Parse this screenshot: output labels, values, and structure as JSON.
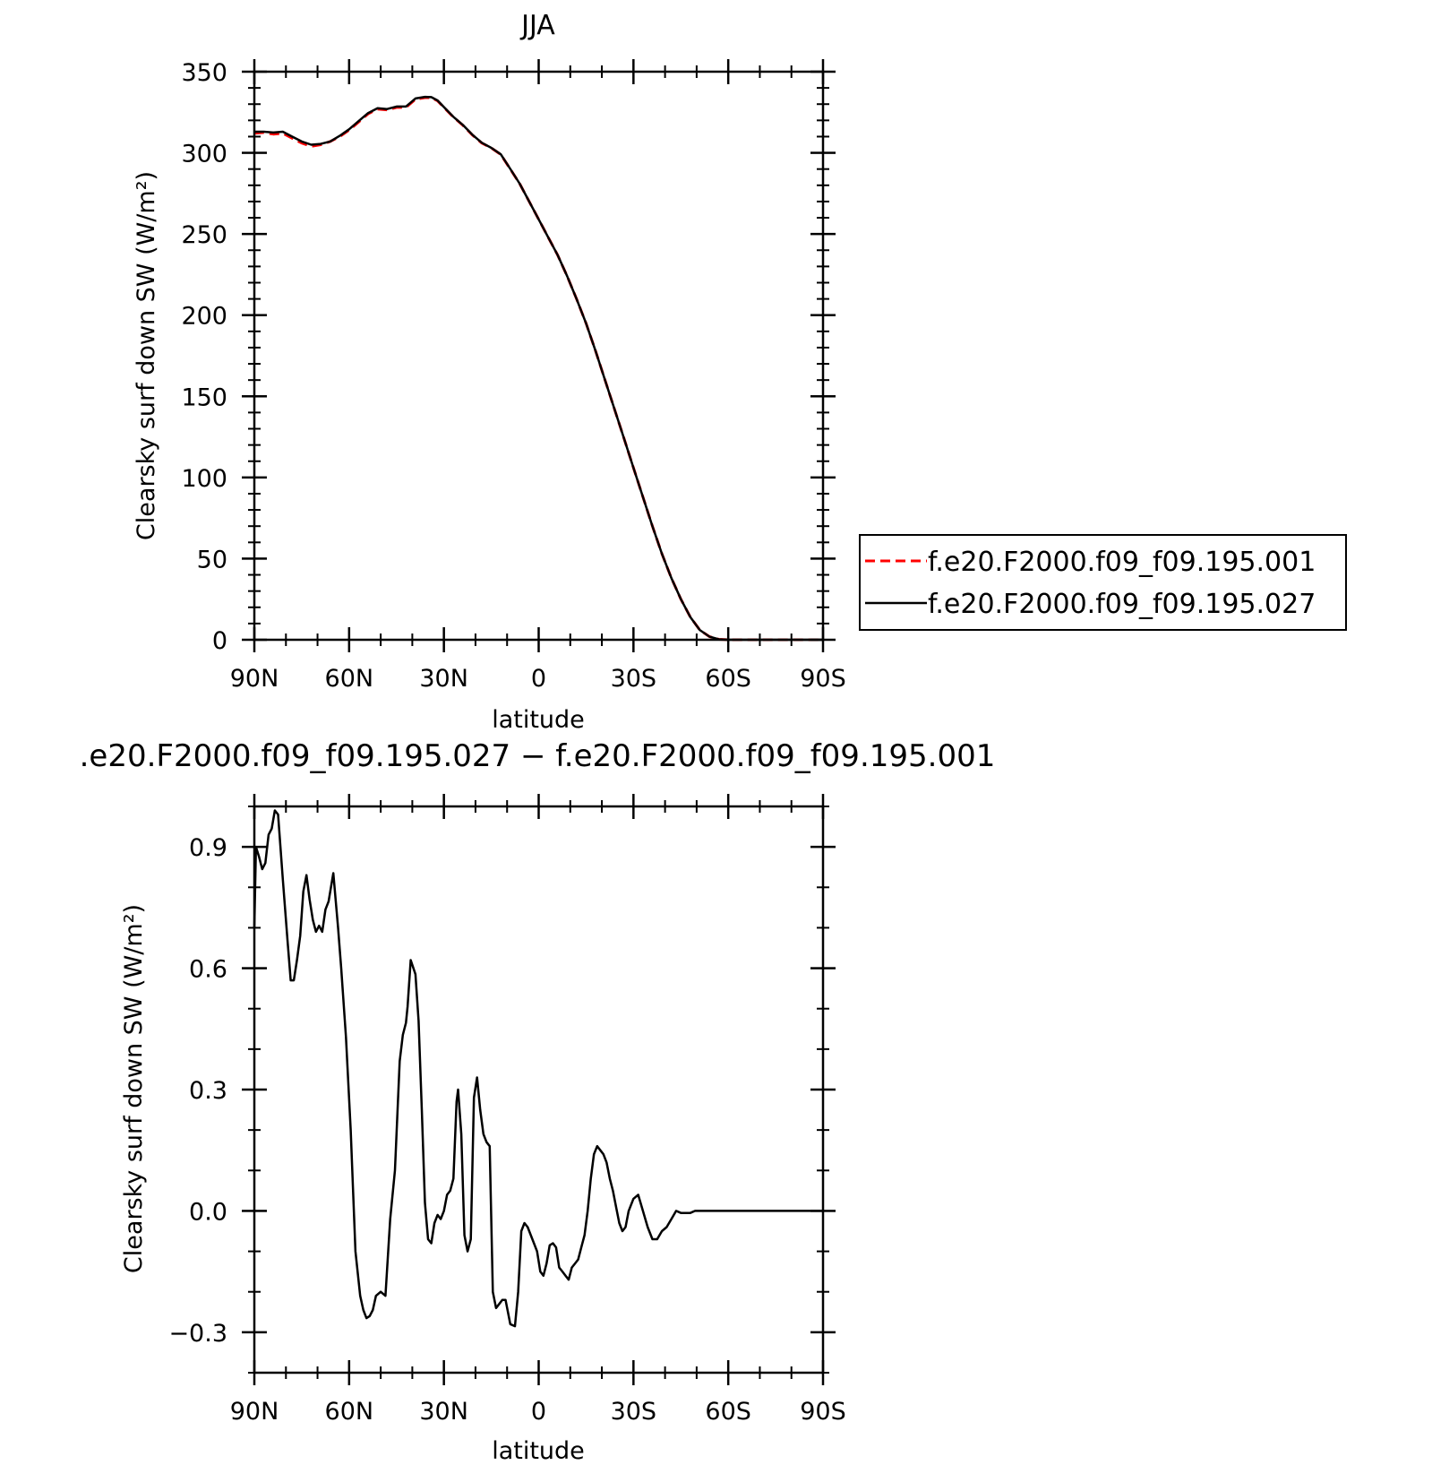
{
  "chart_data": [
    {
      "type": "line",
      "title": "JJA",
      "xlabel": "latitude",
      "ylabel": "Clearsky surf down SW (W/m²)",
      "x_range": [
        90,
        -90
      ],
      "x_ticks": [
        90,
        60,
        30,
        0,
        -30,
        -60,
        -90
      ],
      "x_tick_labels": [
        "90N",
        "60N",
        "30N",
        "0",
        "30S",
        "60S",
        "90S"
      ],
      "ylim": [
        0,
        350
      ],
      "y_ticks": [
        0,
        50,
        100,
        150,
        200,
        250,
        300,
        350
      ],
      "y_tick_labels": [
        "0",
        "50",
        "100",
        "150",
        "200",
        "250",
        "300",
        "350"
      ],
      "grid": false,
      "legend_placement": "outside-right",
      "series": [
        {
          "name": "f.e20.F2000.f09_f09.195.001",
          "color": "#ff0000",
          "style": "dashed",
          "x": [
            90,
            87,
            84,
            81,
            78,
            75,
            72,
            69,
            66,
            63,
            60,
            57,
            54,
            51,
            48,
            45,
            42,
            39,
            36,
            34,
            32,
            30,
            27,
            24,
            21,
            18,
            15,
            12,
            9,
            6,
            3,
            0,
            -3,
            -6,
            -9,
            -12,
            -15,
            -18,
            -21,
            -24,
            -27,
            -30,
            -33,
            -36,
            -39,
            -42,
            -45,
            -48,
            -51,
            -54,
            -57,
            -60,
            -63,
            -66,
            -69,
            -72,
            -75,
            -78,
            -81,
            -84,
            -87,
            -90
          ],
          "y": [
            312,
            312.5,
            311.5,
            312,
            309,
            306,
            304,
            305,
            307,
            310,
            314,
            319,
            324,
            327,
            326.5,
            328,
            328,
            333,
            334,
            334,
            332,
            328,
            322,
            317,
            311,
            306,
            303,
            299,
            290,
            281,
            270,
            259,
            248,
            237,
            224,
            210,
            195,
            178,
            160,
            142,
            124,
            106,
            88,
            70,
            53,
            38,
            25,
            14,
            6,
            2,
            0.3,
            0,
            0,
            0,
            0,
            0,
            0,
            0,
            0,
            0,
            0,
            0
          ]
        },
        {
          "name": "f.e20.F2000.f09_f09.195.027",
          "color": "#000000",
          "style": "solid",
          "x": [
            90,
            87,
            84,
            81,
            78,
            75,
            72,
            69,
            66,
            63,
            60,
            57,
            54,
            51,
            48,
            45,
            42,
            39,
            36,
            34,
            32,
            30,
            27,
            24,
            21,
            18,
            15,
            12,
            9,
            6,
            3,
            0,
            -3,
            -6,
            -9,
            -12,
            -15,
            -18,
            -21,
            -24,
            -27,
            -30,
            -33,
            -36,
            -39,
            -42,
            -45,
            -48,
            -51,
            -54,
            -57,
            -60,
            -63,
            -66,
            -69,
            -72,
            -75,
            -78,
            -81,
            -84,
            -87,
            -90
          ],
          "y": [
            313,
            313,
            312.5,
            313,
            310,
            307,
            305,
            305.5,
            307,
            310.5,
            314.5,
            319.5,
            324.5,
            327.5,
            327,
            328.5,
            328.5,
            333.5,
            334.5,
            334.3,
            332.3,
            328.2,
            322.2,
            317.2,
            311.2,
            306.2,
            303.1,
            299.1,
            290.1,
            281,
            270,
            259,
            248,
            237,
            224,
            210,
            195,
            178,
            160,
            142,
            124,
            106,
            88,
            70,
            53,
            38,
            25,
            14,
            6,
            2,
            0.3,
            0,
            0,
            0,
            0,
            0,
            0,
            0,
            0,
            0,
            0,
            0
          ]
        }
      ]
    },
    {
      "type": "line",
      "title": ".e20.F2000.f09_f09.195.027 − f.e20.F2000.f09_f09.195.001",
      "xlabel": "latitude",
      "ylabel": "Clearsky surf down SW (W/m²)",
      "x_range": [
        90,
        -90
      ],
      "x_ticks": [
        90,
        60,
        30,
        0,
        -30,
        -60,
        -90
      ],
      "x_tick_labels": [
        "90N",
        "60N",
        "30N",
        "0",
        "30S",
        "60S",
        "90S"
      ],
      "ylim": [
        -0.4,
        1.0
      ],
      "y_ticks": [
        -0.3,
        0.0,
        0.3,
        0.6,
        0.9
      ],
      "y_tick_labels": [
        "−0.3",
        "0.0",
        "0.3",
        "0.6",
        "0.9"
      ],
      "grid": false,
      "series": [
        {
          "color": "#000000",
          "style": "solid",
          "x": [
            90,
            89.5,
            88.5,
            87.5,
            86.5,
            85.5,
            84.5,
            83.5,
            82.5,
            81,
            79.5,
            78.5,
            77.5,
            76.5,
            75.5,
            74.5,
            73.5,
            72.5,
            71.5,
            70.5,
            69.5,
            68.5,
            67.5,
            66.5,
            65,
            63.5,
            62.5,
            61,
            59.5,
            58,
            56.5,
            55.5,
            54.5,
            53.5,
            52.5,
            51.5,
            50,
            48.5,
            47,
            45.5,
            44,
            43,
            42,
            41.5,
            40.5,
            39,
            38,
            37,
            36,
            35,
            34,
            33,
            32,
            31,
            30,
            29,
            28,
            27,
            26,
            25.5,
            24.5,
            23.5,
            22.5,
            21.5,
            20.5,
            19.5,
            18.5,
            17.5,
            16.5,
            15.5,
            14.5,
            13.5,
            12.5,
            11.5,
            10.5,
            9,
            7.5,
            6.5,
            5.5,
            4.5,
            3.5,
            2.5,
            1.5,
            0.5,
            -0.5,
            -1.5,
            -2.5,
            -3.5,
            -4.5,
            -5.5,
            -6.5,
            -7.5,
            -8.5,
            -9.5,
            -10.5,
            -11.5,
            -12.5,
            -13.5,
            -14.5,
            -15.5,
            -16.5,
            -17.5,
            -18.5,
            -19.5,
            -20.5,
            -21.5,
            -22.5,
            -23.5,
            -24.5,
            -25.5,
            -26.5,
            -27.5,
            -28.5,
            -30,
            -31.5,
            -33,
            -34.5,
            -36,
            -37.5,
            -39,
            -40.5,
            -42,
            -43.5,
            -45,
            -46.5,
            -48,
            -49.5,
            -51,
            -52.5,
            -54,
            -55.5,
            -57,
            -58.5,
            -60,
            -61.5,
            -63,
            -64.5,
            -66,
            -67.5,
            -69,
            -70.5,
            -72,
            -73.5,
            -75,
            -78,
            -81,
            -84,
            -87,
            -90
          ],
          "y": [
            0.7,
            0.9,
            0.875,
            0.845,
            0.86,
            0.93,
            0.945,
            0.99,
            0.98,
            0.82,
            0.67,
            0.57,
            0.57,
            0.62,
            0.68,
            0.79,
            0.83,
            0.77,
            0.72,
            0.69,
            0.705,
            0.69,
            0.745,
            0.765,
            0.835,
            0.7,
            0.6,
            0.43,
            0.2,
            -0.1,
            -0.21,
            -0.245,
            -0.265,
            -0.26,
            -0.245,
            -0.21,
            -0.2,
            -0.21,
            -0.02,
            0.1,
            0.37,
            0.435,
            0.465,
            0.505,
            0.62,
            0.585,
            0.47,
            0.25,
            0.02,
            -0.07,
            -0.08,
            -0.03,
            -0.01,
            -0.02,
            0.0,
            0.04,
            0.05,
            0.08,
            0.27,
            0.3,
            0.19,
            -0.06,
            -0.1,
            -0.07,
            0.28,
            0.33,
            0.25,
            0.19,
            0.17,
            0.16,
            -0.2,
            -0.24,
            -0.23,
            -0.22,
            -0.22,
            -0.28,
            -0.285,
            -0.2,
            -0.05,
            -0.03,
            -0.04,
            -0.06,
            -0.08,
            -0.1,
            -0.15,
            -0.16,
            -0.13,
            -0.085,
            -0.08,
            -0.09,
            -0.14,
            -0.15,
            -0.16,
            -0.17,
            -0.14,
            -0.13,
            -0.12,
            -0.09,
            -0.06,
            0.0,
            0.08,
            0.14,
            0.16,
            0.15,
            0.14,
            0.12,
            0.08,
            0.05,
            0.01,
            -0.03,
            -0.05,
            -0.04,
            0.0,
            0.03,
            0.04,
            0.0,
            -0.04,
            -0.07,
            -0.07,
            -0.05,
            -0.04,
            -0.02,
            0.0,
            -0.005,
            -0.005,
            -0.005,
            0.0,
            0.0,
            0.0,
            0.0,
            0.0,
            0.0,
            0.0,
            0.0,
            0.0,
            0.0,
            0.0,
            0.0,
            0.0,
            0.0,
            0.0,
            0.0,
            0.0,
            0.0,
            0.0,
            0.0,
            0.0,
            0.0,
            0.0
          ]
        }
      ]
    }
  ]
}
